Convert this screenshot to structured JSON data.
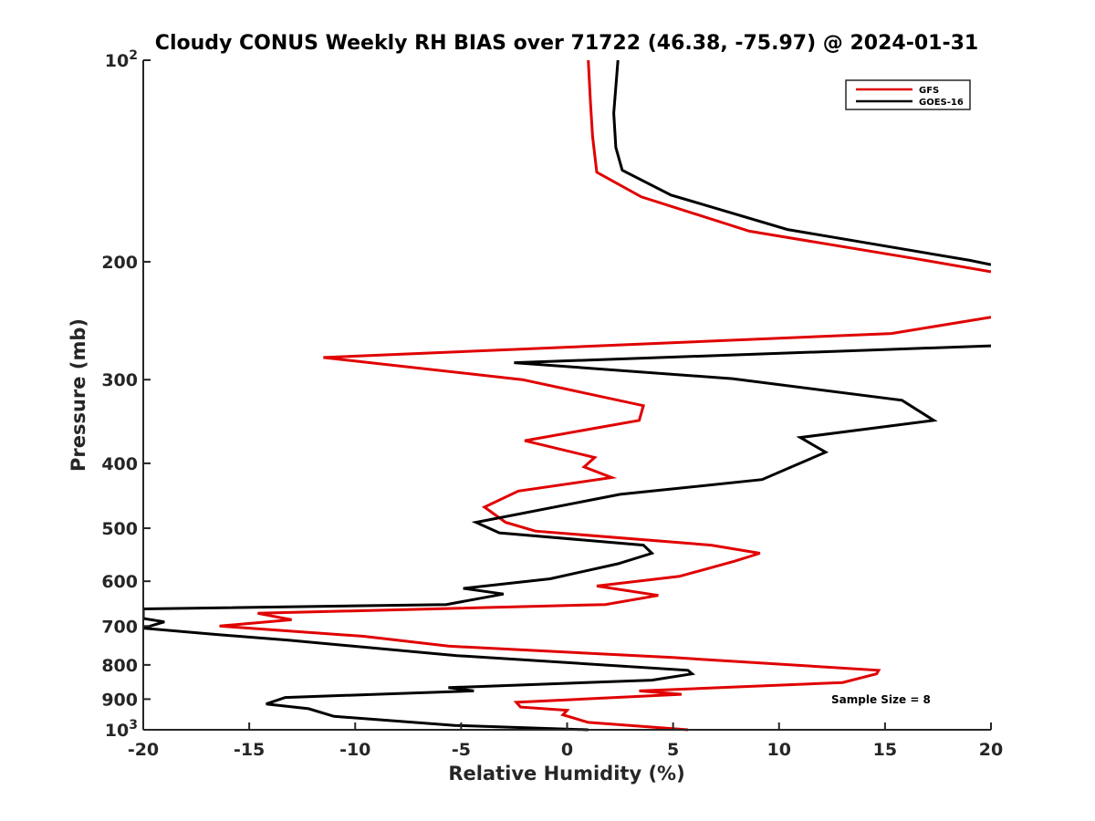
{
  "chart_data": {
    "type": "line",
    "title": "Cloudy CONUS Weekly RH BIAS over 71722 (46.38, -75.97) @ 2024-01-31",
    "xlabel": "Relative Humidity (%)",
    "ylabel": "Pressure (mb)",
    "xlim": [
      -20,
      20
    ],
    "ylim": [
      1000,
      100
    ],
    "yscale": "log",
    "x_ticks": [
      -20,
      -15,
      -10,
      -5,
      0,
      5,
      10,
      15,
      20
    ],
    "x_tick_labels": [
      "-20",
      "-15",
      "-10",
      "-5",
      "0",
      "5",
      "10",
      "15",
      "20"
    ],
    "y_ticks": [
      1000,
      900,
      800,
      700,
      600,
      500,
      400,
      300,
      200,
      100
    ],
    "y_tick_labels": [
      {
        "base": "10",
        "exp": "3"
      },
      {
        "base": "900",
        "exp": ""
      },
      {
        "base": "800",
        "exp": ""
      },
      {
        "base": "700",
        "exp": ""
      },
      {
        "base": "600",
        "exp": ""
      },
      {
        "base": "500",
        "exp": ""
      },
      {
        "base": "400",
        "exp": ""
      },
      {
        "base": "300",
        "exp": ""
      },
      {
        "base": "200",
        "exp": ""
      },
      {
        "base": "10",
        "exp": "2"
      }
    ],
    "legend_position": "top-right",
    "annotation": "Sample Size = 8",
    "series": [
      {
        "name": "GFS",
        "color": "#e00000",
        "points": [
          [
            5.7,
            1000
          ],
          [
            1.0,
            975
          ],
          [
            -0.2,
            950
          ],
          [
            0.0,
            935
          ],
          [
            -2.2,
            925
          ],
          [
            -2.4,
            910
          ],
          [
            5.4,
            885
          ],
          [
            3.4,
            875
          ],
          [
            13.0,
            850
          ],
          [
            14.6,
            825
          ],
          [
            14.7,
            815
          ],
          [
            5.0,
            780
          ],
          [
            -5.6,
            750
          ],
          [
            -9.6,
            725
          ],
          [
            -16.4,
            700
          ],
          [
            -13.0,
            685
          ],
          [
            -14.6,
            670
          ],
          [
            1.8,
            650
          ],
          [
            4.3,
            630
          ],
          [
            1.4,
            610
          ],
          [
            5.3,
            590
          ],
          [
            7.9,
            560
          ],
          [
            9.1,
            545
          ],
          [
            6.8,
            530
          ],
          [
            -1.5,
            505
          ],
          [
            -2.9,
            490
          ],
          [
            -3.9,
            465
          ],
          [
            -2.3,
            440
          ],
          [
            2.1,
            420
          ],
          [
            0.8,
            405
          ],
          [
            1.3,
            392
          ],
          [
            -2.0,
            370
          ],
          [
            3.4,
            345
          ],
          [
            3.6,
            328
          ],
          [
            -2.1,
            300
          ],
          [
            -11.5,
            278
          ],
          [
            15.3,
            256
          ],
          [
            20.0,
            242
          ]
        ]
      },
      {
        "name": "GOES-16",
        "color": "#000000",
        "points": [
          [
            1.0,
            1000
          ],
          [
            -5.3,
            985
          ],
          [
            -11.0,
            955
          ],
          [
            -12.2,
            930
          ],
          [
            -14.2,
            915
          ],
          [
            -13.3,
            895
          ],
          [
            -4.4,
            875
          ],
          [
            -5.6,
            865
          ],
          [
            4.0,
            843
          ],
          [
            5.9,
            825
          ],
          [
            5.7,
            815
          ],
          [
            -5.2,
            775
          ],
          [
            -13.1,
            735
          ],
          [
            -16.7,
            720
          ],
          [
            -20.0,
            705
          ],
          [
            -19.0,
            690
          ],
          [
            -20.0,
            682
          ],
          [
            -20.0,
            660
          ],
          [
            -5.7,
            650
          ],
          [
            -3.0,
            627
          ],
          [
            -4.9,
            615
          ],
          [
            -0.8,
            595
          ],
          [
            2.4,
            565
          ],
          [
            4.0,
            545
          ],
          [
            3.6,
            530
          ],
          [
            -3.2,
            508
          ],
          [
            -4.3,
            490
          ],
          [
            2.5,
            445
          ],
          [
            9.2,
            423
          ],
          [
            12.2,
            385
          ],
          [
            11.0,
            366
          ],
          [
            17.3,
            345
          ],
          [
            15.8,
            322
          ],
          [
            7.8,
            299
          ],
          [
            -2.5,
            283
          ],
          [
            20.0,
            267
          ]
        ]
      },
      {
        "name": "GFS-upper",
        "legend": false,
        "color": "#e00000",
        "points": [
          [
            20.0,
            207
          ],
          [
            16.5,
            198
          ],
          [
            8.6,
            180
          ],
          [
            3.5,
            160
          ],
          [
            1.4,
            147
          ],
          [
            1.2,
            130
          ],
          [
            1.1,
            115
          ],
          [
            1.0,
            100
          ]
        ]
      },
      {
        "name": "GOES-16-upper",
        "legend": false,
        "color": "#000000",
        "points": [
          [
            20.0,
            202
          ],
          [
            19.0,
            199
          ],
          [
            10.4,
            179
          ],
          [
            4.9,
            159
          ],
          [
            2.6,
            146
          ],
          [
            2.3,
            135
          ],
          [
            2.2,
            120
          ],
          [
            2.4,
            100
          ]
        ]
      }
    ]
  }
}
